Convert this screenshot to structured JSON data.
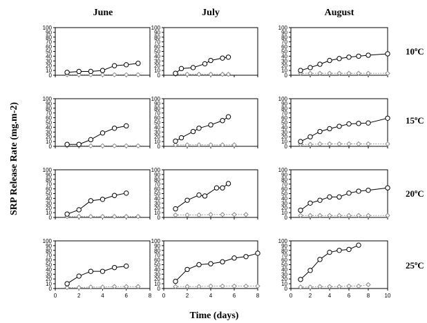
{
  "figure": {
    "y_title": "SRP Release Rate  (mg.m-2)",
    "x_title": "Time (days)",
    "col_titles": [
      "June",
      "July",
      "August"
    ],
    "row_labels": [
      "10ºC",
      "15ºC",
      "20ºC",
      "25ºC"
    ]
  },
  "chart_data": {
    "type": "line",
    "ylim": [
      0,
      100
    ],
    "yticks": [
      0,
      10,
      20,
      30,
      40,
      50,
      60,
      70,
      80,
      90,
      100
    ],
    "xlims": [
      [
        0,
        8
      ],
      [
        0,
        8
      ],
      [
        0,
        10
      ]
    ],
    "xticks": [
      [
        0,
        2,
        4,
        6,
        8
      ],
      [
        0,
        2,
        4,
        6,
        8
      ],
      [
        0,
        2,
        4,
        6,
        8,
        10
      ]
    ],
    "x_tick_labels_shown_on_bottom_row_only": true,
    "grid": false,
    "series_styles": {
      "upper": {
        "marker": "circle",
        "line": "solid",
        "color": "#000000"
      },
      "lower": {
        "marker": "diamond",
        "line": "dotted",
        "color": "#8a8a8a"
      }
    },
    "panels": [
      {
        "row": 0,
        "col": 0,
        "upper": {
          "x": [
            1,
            2,
            3,
            4,
            5,
            6,
            7
          ],
          "y": [
            6,
            8,
            8,
            10,
            20,
            22,
            25
          ]
        },
        "lower": {
          "x": [
            1,
            2,
            3,
            4,
            5,
            6,
            7
          ],
          "y": [
            1,
            1,
            1,
            1,
            1,
            1,
            1
          ]
        }
      },
      {
        "row": 0,
        "col": 1,
        "upper": {
          "x": [
            1,
            1.5,
            2.5,
            3.5,
            4,
            5,
            5.5
          ],
          "y": [
            4,
            14,
            16,
            24,
            31,
            36,
            38
          ]
        },
        "lower": {
          "x": [
            1,
            2,
            3,
            4,
            5,
            5.5
          ],
          "y": [
            2,
            2,
            2,
            2,
            2,
            2
          ]
        }
      },
      {
        "row": 0,
        "col": 2,
        "upper": {
          "x": [
            1,
            2,
            3,
            4,
            5,
            6,
            7,
            8,
            10
          ],
          "y": [
            10,
            16,
            23,
            31,
            35,
            38,
            40,
            42,
            45
          ]
        },
        "lower": {
          "x": [
            1,
            2,
            3,
            4,
            5,
            6,
            7,
            8,
            10
          ],
          "y": [
            4,
            4,
            4,
            4,
            4,
            4,
            4,
            4,
            4
          ]
        }
      },
      {
        "row": 1,
        "col": 0,
        "upper": {
          "x": [
            1,
            2,
            3,
            4,
            5,
            6
          ],
          "y": [
            4,
            4,
            14,
            28,
            38,
            43
          ]
        },
        "lower": {
          "x": [
            1,
            2,
            3,
            4,
            5,
            6,
            7
          ],
          "y": [
            1,
            1,
            1,
            1,
            1,
            1,
            1
          ]
        }
      },
      {
        "row": 1,
        "col": 1,
        "upper": {
          "x": [
            1,
            1.5,
            2.5,
            3,
            4,
            5,
            5.5
          ],
          "y": [
            11,
            18,
            31,
            38,
            45,
            54,
            62
          ]
        },
        "lower": {
          "x": [
            1,
            2,
            3,
            4,
            5,
            6
          ],
          "y": [
            3,
            3,
            3,
            3,
            3,
            3
          ]
        }
      },
      {
        "row": 1,
        "col": 2,
        "upper": {
          "x": [
            1,
            2,
            3,
            4,
            5,
            6,
            7,
            8,
            10
          ],
          "y": [
            10,
            20,
            31,
            37,
            42,
            47,
            48,
            49,
            59
          ]
        },
        "lower": {
          "x": [
            1,
            2,
            3,
            4,
            5,
            6,
            7,
            8,
            10
          ],
          "y": [
            4,
            4,
            5,
            5,
            5,
            5,
            5,
            5,
            5
          ]
        }
      },
      {
        "row": 2,
        "col": 0,
        "upper": {
          "x": [
            1,
            2,
            3,
            4,
            5,
            6
          ],
          "y": [
            7,
            16,
            35,
            38,
            46,
            51
          ]
        },
        "lower": {
          "x": [
            1,
            2,
            3,
            4,
            5,
            6,
            7
          ],
          "y": [
            2,
            2,
            2,
            2,
            2,
            2,
            2
          ]
        }
      },
      {
        "row": 2,
        "col": 1,
        "upper": {
          "x": [
            1,
            2,
            3,
            3.5,
            4.5,
            5,
            5.5
          ],
          "y": [
            18,
            36,
            47,
            45,
            62,
            62,
            71
          ]
        },
        "lower": {
          "x": [
            1,
            2,
            3,
            4,
            5,
            6,
            7
          ],
          "y": [
            5,
            5,
            5,
            6,
            6,
            6,
            6
          ]
        }
      },
      {
        "row": 2,
        "col": 2,
        "upper": {
          "x": [
            1,
            2,
            3,
            4,
            5,
            6,
            7,
            8,
            10
          ],
          "y": [
            15,
            30,
            36,
            43,
            43,
            51,
            55,
            57,
            62
          ]
        },
        "lower": {
          "x": [
            1,
            2,
            3,
            4,
            5,
            6,
            7,
            8,
            10
          ],
          "y": [
            4,
            4,
            4,
            4,
            4,
            4,
            4,
            4,
            4
          ]
        }
      },
      {
        "row": 3,
        "col": 0,
        "upper": {
          "x": [
            1,
            2,
            3,
            4,
            5,
            6
          ],
          "y": [
            10,
            26,
            36,
            36,
            44,
            47
          ]
        },
        "lower": {
          "x": [
            1,
            2,
            3,
            4,
            5,
            6,
            7
          ],
          "y": [
            2,
            2,
            3,
            3,
            4,
            4,
            4
          ]
        }
      },
      {
        "row": 3,
        "col": 1,
        "upper": {
          "x": [
            1,
            2,
            3,
            4,
            5,
            6,
            7,
            8
          ],
          "y": [
            15,
            40,
            50,
            52,
            56,
            64,
            67,
            74
          ]
        },
        "lower": {
          "x": [
            1,
            2,
            3,
            4,
            5,
            6,
            7,
            8
          ],
          "y": [
            4,
            4,
            4,
            5,
            5,
            5,
            5,
            5
          ]
        }
      },
      {
        "row": 3,
        "col": 2,
        "upper": {
          "x": [
            1,
            2,
            3,
            4,
            5,
            6,
            7
          ],
          "y": [
            19,
            38,
            61,
            76,
            80,
            82,
            91
          ]
        },
        "lower": {
          "x": [
            1,
            2,
            3,
            4,
            5,
            6,
            7,
            8
          ],
          "y": [
            3,
            3,
            4,
            4,
            4,
            5,
            5,
            8
          ]
        }
      }
    ]
  }
}
